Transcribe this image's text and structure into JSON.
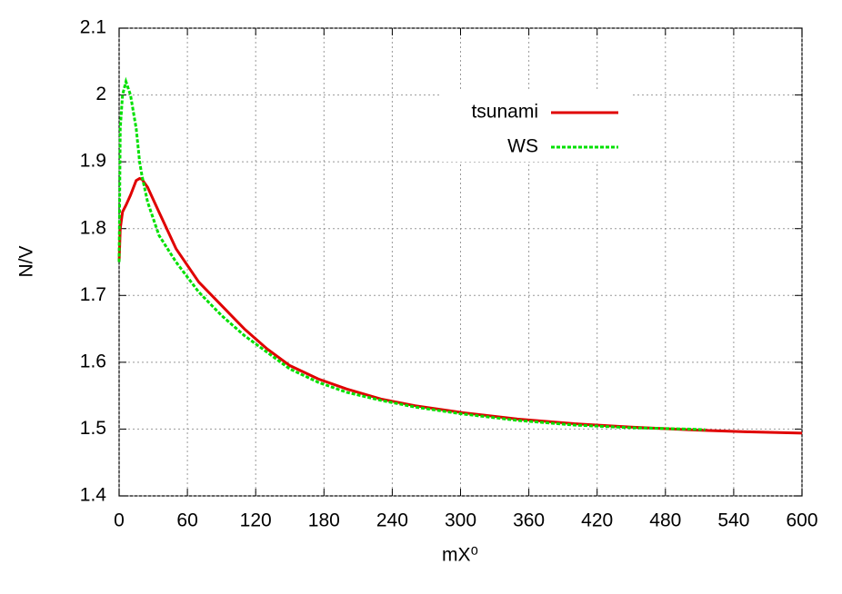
{
  "chart_data": {
    "type": "line",
    "xlabel": "mX⁰",
    "ylabel": "N/V",
    "x": [
      0,
      1,
      3,
      6,
      10,
      15,
      18,
      20,
      25,
      35,
      50,
      70,
      90,
      110,
      130,
      150,
      175,
      200,
      230,
      260,
      300,
      350,
      400,
      450,
      500,
      515,
      550,
      600
    ],
    "series": [
      {
        "name": "tsunami",
        "color": "#e00000",
        "dashed": false,
        "values": [
          1.75,
          1.8,
          1.825,
          1.835,
          1.85,
          1.872,
          1.875,
          1.874,
          1.862,
          1.825,
          1.77,
          1.72,
          1.685,
          1.65,
          1.62,
          1.595,
          1.575,
          1.56,
          1.545,
          1.535,
          1.525,
          1.515,
          1.508,
          1.503,
          1.499,
          1.498,
          1.496,
          1.494
        ]
      },
      {
        "name": "WS",
        "color": "#00e000",
        "dashed": true,
        "values": [
          1.75,
          1.95,
          2.0,
          2.02,
          2.0,
          1.95,
          1.9,
          1.88,
          1.84,
          1.79,
          1.75,
          1.705,
          1.67,
          1.64,
          1.615,
          1.59,
          1.57,
          1.555,
          1.543,
          1.533,
          1.523,
          1.513,
          1.506,
          1.502,
          1.5,
          1.499,
          null,
          null
        ]
      }
    ],
    "xlim": [
      0,
      600
    ],
    "xticks": [
      0,
      60,
      120,
      180,
      240,
      300,
      360,
      420,
      480,
      540,
      600
    ],
    "ylim": [
      1.4,
      2.1
    ],
    "yticks": [
      1.4,
      1.5,
      1.6,
      1.7,
      1.8,
      1.9,
      2,
      2.1
    ],
    "grid": true,
    "legend": "top-right"
  }
}
